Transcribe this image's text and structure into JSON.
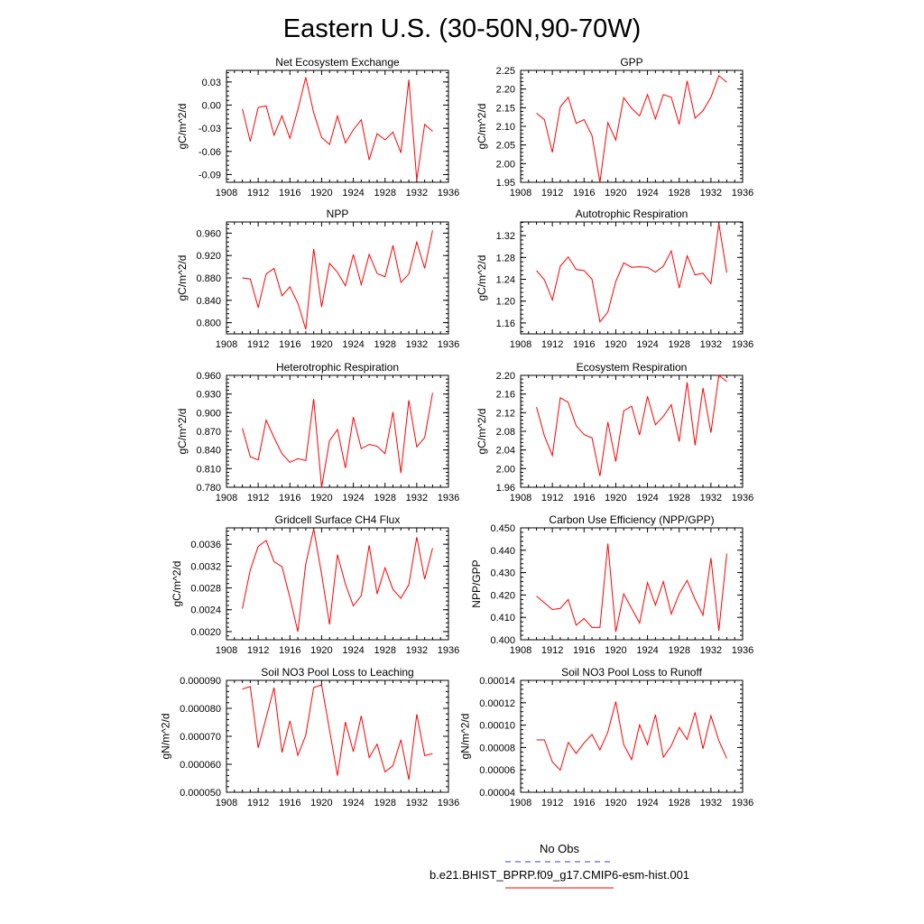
{
  "figure": {
    "title": "Eastern U.S. (30-50N,90-70W)"
  },
  "legend": {
    "entries": [
      {
        "label": "No Obs",
        "color": "#3a3ae0",
        "dashed": true
      },
      {
        "label": "b.e21.BHIST_BPRP.f09_g17.CMIP6-esm-hist.001",
        "color": "#ff0000",
        "dashed": false
      }
    ]
  },
  "chart_data": [
    {
      "type": "line",
      "title": "Net Ecosystem Exchange",
      "xlabel": "",
      "ylabel": "gC/m^2/d",
      "xlim": [
        1908,
        1936
      ],
      "ylim": [
        -0.1,
        0.045
      ],
      "xticks": [
        1908,
        1912,
        1916,
        1920,
        1924,
        1928,
        1932,
        1936
      ],
      "yticks": [
        -0.09,
        -0.06,
        -0.03,
        0.0,
        0.03
      ],
      "ytick_labels": [
        "-0.09",
        "-0.06",
        "-0.03",
        "0.00",
        "0.03"
      ],
      "x": [
        1910,
        1911,
        1912,
        1913,
        1914,
        1915,
        1916,
        1917,
        1918,
        1919,
        1920,
        1921,
        1922,
        1923,
        1924,
        1925,
        1926,
        1927,
        1928,
        1929,
        1930,
        1931,
        1932,
        1933,
        1934
      ],
      "series": [
        {
          "color": "#ff0000",
          "values": [
            -0.005,
            -0.047,
            -0.003,
            -0.001,
            -0.039,
            -0.014,
            -0.043,
            -0.006,
            0.036,
            -0.01,
            -0.042,
            -0.051,
            -0.014,
            -0.049,
            -0.032,
            -0.019,
            -0.071,
            -0.037,
            -0.045,
            -0.035,
            -0.062,
            0.033,
            -0.097,
            -0.025,
            -0.034
          ]
        }
      ]
    },
    {
      "type": "line",
      "title": "GPP",
      "xlabel": "",
      "ylabel": "gC/m^2/d",
      "xlim": [
        1908,
        1936
      ],
      "ylim": [
        1.95,
        2.25
      ],
      "xticks": [
        1908,
        1912,
        1916,
        1920,
        1924,
        1928,
        1932,
        1936
      ],
      "yticks": [
        1.95,
        2.0,
        2.05,
        2.1,
        2.15,
        2.2,
        2.25
      ],
      "ytick_labels": [
        "1.95",
        "2.00",
        "2.05",
        "2.10",
        "2.15",
        "2.20",
        "2.25"
      ],
      "x": [
        1910,
        1911,
        1912,
        1913,
        1914,
        1915,
        1916,
        1917,
        1918,
        1919,
        1920,
        1921,
        1922,
        1923,
        1924,
        1925,
        1926,
        1927,
        1928,
        1929,
        1930,
        1931,
        1932,
        1933,
        1934
      ],
      "series": [
        {
          "color": "#ff0000",
          "values": [
            2.135,
            2.118,
            2.03,
            2.152,
            2.178,
            2.108,
            2.118,
            2.075,
            1.95,
            2.11,
            2.063,
            2.177,
            2.148,
            2.128,
            2.185,
            2.12,
            2.185,
            2.178,
            2.105,
            2.222,
            2.122,
            2.142,
            2.178,
            2.236,
            2.218
          ]
        }
      ]
    },
    {
      "type": "line",
      "title": "NPP",
      "xlabel": "",
      "ylabel": "gC/m^2/d",
      "xlim": [
        1908,
        1936
      ],
      "ylim": [
        0.78,
        0.98
      ],
      "xticks": [
        1908,
        1912,
        1916,
        1920,
        1924,
        1928,
        1932,
        1936
      ],
      "yticks": [
        0.8,
        0.84,
        0.88,
        0.92,
        0.96
      ],
      "ytick_labels": [
        "0.800",
        "0.840",
        "0.880",
        "0.920",
        "0.960"
      ],
      "x": [
        1910,
        1911,
        1912,
        1913,
        1914,
        1915,
        1916,
        1917,
        1918,
        1919,
        1920,
        1921,
        1922,
        1923,
        1924,
        1925,
        1926,
        1927,
        1928,
        1929,
        1930,
        1931,
        1932,
        1933,
        1934
      ],
      "series": [
        {
          "color": "#ff0000",
          "values": [
            0.88,
            0.878,
            0.827,
            0.887,
            0.897,
            0.848,
            0.864,
            0.835,
            0.788,
            0.932,
            0.828,
            0.906,
            0.89,
            0.866,
            0.922,
            0.868,
            0.922,
            0.888,
            0.882,
            0.938,
            0.872,
            0.887,
            0.944,
            0.897,
            0.965
          ]
        }
      ]
    },
    {
      "type": "line",
      "title": "Autotrophic Respiration",
      "xlabel": "",
      "ylabel": "gC/m^2/d",
      "xlim": [
        1908,
        1936
      ],
      "ylim": [
        1.14,
        1.345
      ],
      "xticks": [
        1908,
        1912,
        1916,
        1920,
        1924,
        1928,
        1932,
        1936
      ],
      "yticks": [
        1.16,
        1.2,
        1.24,
        1.28,
        1.32
      ],
      "ytick_labels": [
        "1.16",
        "1.20",
        "1.24",
        "1.28",
        "1.32"
      ],
      "x": [
        1910,
        1911,
        1912,
        1913,
        1914,
        1915,
        1916,
        1917,
        1918,
        1919,
        1920,
        1921,
        1922,
        1923,
        1924,
        1925,
        1926,
        1927,
        1928,
        1929,
        1930,
        1931,
        1932,
        1933,
        1934
      ],
      "series": [
        {
          "color": "#ff0000",
          "values": [
            1.256,
            1.239,
            1.202,
            1.264,
            1.281,
            1.258,
            1.256,
            1.24,
            1.162,
            1.18,
            1.236,
            1.27,
            1.262,
            1.263,
            1.262,
            1.253,
            1.264,
            1.292,
            1.224,
            1.283,
            1.248,
            1.251,
            1.232,
            1.342,
            1.252
          ]
        }
      ]
    },
    {
      "type": "line",
      "title": "Heterotrophic Respiration",
      "xlabel": "",
      "ylabel": "gC/m^2/d",
      "xlim": [
        1908,
        1936
      ],
      "ylim": [
        0.78,
        0.96
      ],
      "xticks": [
        1908,
        1912,
        1916,
        1920,
        1924,
        1928,
        1932,
        1936
      ],
      "yticks": [
        0.78,
        0.81,
        0.84,
        0.87,
        0.9,
        0.93,
        0.96
      ],
      "ytick_labels": [
        "0.780",
        "0.810",
        "0.840",
        "0.870",
        "0.900",
        "0.930",
        "0.960"
      ],
      "x": [
        1910,
        1911,
        1912,
        1913,
        1914,
        1915,
        1916,
        1917,
        1918,
        1919,
        1920,
        1921,
        1922,
        1923,
        1924,
        1925,
        1926,
        1927,
        1928,
        1929,
        1930,
        1931,
        1932,
        1933,
        1934
      ],
      "series": [
        {
          "color": "#ff0000",
          "values": [
            0.875,
            0.829,
            0.824,
            0.888,
            0.86,
            0.834,
            0.82,
            0.826,
            0.823,
            0.922,
            0.78,
            0.855,
            0.873,
            0.811,
            0.893,
            0.842,
            0.849,
            0.846,
            0.834,
            0.901,
            0.803,
            0.92,
            0.845,
            0.86,
            0.932
          ]
        }
      ]
    },
    {
      "type": "line",
      "title": "Ecosystem Respiration",
      "xlabel": "",
      "ylabel": "gC/m^2/d",
      "xlim": [
        1908,
        1936
      ],
      "ylim": [
        1.96,
        2.2
      ],
      "xticks": [
        1908,
        1912,
        1916,
        1920,
        1924,
        1928,
        1932,
        1936
      ],
      "yticks": [
        1.96,
        2.0,
        2.04,
        2.08,
        2.12,
        2.16,
        2.2
      ],
      "ytick_labels": [
        "1.96",
        "2.00",
        "2.04",
        "2.08",
        "2.12",
        "2.16",
        "2.20"
      ],
      "x": [
        1910,
        1911,
        1912,
        1913,
        1914,
        1915,
        1916,
        1917,
        1918,
        1919,
        1920,
        1921,
        1922,
        1923,
        1924,
        1925,
        1926,
        1927,
        1928,
        1929,
        1930,
        1931,
        1932,
        1933,
        1934
      ],
      "series": [
        {
          "color": "#ff0000",
          "values": [
            2.132,
            2.07,
            2.028,
            2.152,
            2.142,
            2.092,
            2.073,
            2.066,
            1.984,
            2.1,
            2.015,
            2.124,
            2.134,
            2.072,
            2.155,
            2.094,
            2.112,
            2.137,
            2.058,
            2.185,
            2.05,
            2.173,
            2.077,
            2.2,
            2.187
          ]
        }
      ]
    },
    {
      "type": "line",
      "title": "Gridcell Surface CH4 Flux",
      "xlabel": "",
      "ylabel": "gC/m^2/d",
      "xlim": [
        1908,
        1936
      ],
      "ylim": [
        0.00185,
        0.0039
      ],
      "xticks": [
        1908,
        1912,
        1916,
        1920,
        1924,
        1928,
        1932,
        1936
      ],
      "yticks": [
        0.002,
        0.0024,
        0.0028,
        0.0032,
        0.0036
      ],
      "ytick_labels": [
        "0.0020",
        "0.0024",
        "0.0028",
        "0.0032",
        "0.0036"
      ],
      "x": [
        1910,
        1911,
        1912,
        1913,
        1914,
        1915,
        1916,
        1917,
        1918,
        1919,
        1920,
        1921,
        1922,
        1923,
        1924,
        1925,
        1926,
        1927,
        1928,
        1929,
        1930,
        1931,
        1932,
        1933,
        1934
      ],
      "series": [
        {
          "color": "#ff0000",
          "values": [
            0.00242,
            0.00313,
            0.00356,
            0.00367,
            0.00328,
            0.00319,
            0.00262,
            0.002,
            0.00324,
            0.00388,
            0.00305,
            0.00213,
            0.00341,
            0.00287,
            0.00247,
            0.00266,
            0.00358,
            0.00269,
            0.00317,
            0.00277,
            0.00261,
            0.00286,
            0.00373,
            0.00296,
            0.00353
          ]
        }
      ]
    },
    {
      "type": "line",
      "title": "Carbon Use Efficiency (NPP/GPP)",
      "xlabel": "",
      "ylabel": "NPP/GPP",
      "xlim": [
        1908,
        1936
      ],
      "ylim": [
        0.4,
        0.45
      ],
      "xticks": [
        1908,
        1912,
        1916,
        1920,
        1924,
        1928,
        1932,
        1936
      ],
      "yticks": [
        0.4,
        0.41,
        0.42,
        0.43,
        0.44,
        0.45
      ],
      "ytick_labels": [
        "0.400",
        "0.410",
        "0.420",
        "0.430",
        "0.440",
        "0.450"
      ],
      "x": [
        1910,
        1911,
        1912,
        1913,
        1914,
        1915,
        1916,
        1917,
        1918,
        1919,
        1920,
        1921,
        1922,
        1923,
        1924,
        1925,
        1926,
        1927,
        1928,
        1929,
        1930,
        1931,
        1932,
        1933,
        1934
      ],
      "series": [
        {
          "color": "#ff0000",
          "values": [
            0.4195,
            0.4165,
            0.4135,
            0.414,
            0.418,
            0.4065,
            0.4095,
            0.4055,
            0.4055,
            0.443,
            0.4035,
            0.4205,
            0.414,
            0.4075,
            0.4255,
            0.4155,
            0.426,
            0.4115,
            0.4205,
            0.4265,
            0.418,
            0.411,
            0.4365,
            0.404,
            0.4385
          ]
        }
      ]
    },
    {
      "type": "line",
      "title": "Soil NO3 Pool Loss to Leaching",
      "xlabel": "",
      "ylabel": "gN/m^2/d",
      "xlim": [
        1908,
        1936
      ],
      "ylim": [
        5e-05,
        9e-05
      ],
      "xticks": [
        1908,
        1912,
        1916,
        1920,
        1924,
        1928,
        1932,
        1936
      ],
      "yticks": [
        5e-05,
        6e-05,
        7e-05,
        8e-05,
        9e-05
      ],
      "ytick_labels": [
        "0.000050",
        "0.000060",
        "0.000070",
        "0.000080",
        "0.000090"
      ],
      "x": [
        1910,
        1911,
        1912,
        1913,
        1914,
        1915,
        1916,
        1917,
        1918,
        1919,
        1920,
        1921,
        1922,
        1923,
        1924,
        1925,
        1926,
        1927,
        1928,
        1929,
        1930,
        1931,
        1932,
        1933,
        1934
      ],
      "series": [
        {
          "color": "#ff0000",
          "values": [
            8.69e-05,
            8.78e-05,
            6.59e-05,
            7.66e-05,
            8.74e-05,
            6.42e-05,
            7.55e-05,
            6.32e-05,
            7.04e-05,
            8.74e-05,
            8.84e-05,
            7.22e-05,
            5.59e-05,
            7.51e-05,
            6.45e-05,
            7.73e-05,
            6.24e-05,
            6.72e-05,
            5.73e-05,
            5.95e-05,
            6.88e-05,
            5.45e-05,
            7.79e-05,
            6.31e-05,
            6.38e-05
          ]
        }
      ]
    },
    {
      "type": "line",
      "title": "Soil NO3 Pool Loss to Runoff",
      "xlabel": "",
      "ylabel": "gN/m^2/d",
      "xlim": [
        1908,
        1936
      ],
      "ylim": [
        4e-05,
        0.00014
      ],
      "xticks": [
        1908,
        1912,
        1916,
        1920,
        1924,
        1928,
        1932,
        1936
      ],
      "yticks": [
        4e-05,
        6e-05,
        8e-05,
        0.0001,
        0.00012,
        0.00014
      ],
      "ytick_labels": [
        "0.00004",
        "0.00006",
        "0.00008",
        "0.00010",
        "0.00012",
        "0.00014"
      ],
      "x": [
        1910,
        1911,
        1912,
        1913,
        1914,
        1915,
        1916,
        1917,
        1918,
        1919,
        1920,
        1921,
        1922,
        1923,
        1924,
        1925,
        1926,
        1927,
        1928,
        1929,
        1930,
        1931,
        1932,
        1933,
        1934
      ],
      "series": [
        {
          "color": "#ff0000",
          "values": [
            8.68e-05,
            8.68e-05,
            6.71e-05,
            5.98e-05,
            8.46e-05,
            7.47e-05,
            8.42e-05,
            9.16e-05,
            7.78e-05,
            9.39e-05,
            0.000121,
            8.27e-05,
            6.92e-05,
            0.0001002,
            8.26e-05,
            0.0001093,
            7.14e-05,
            8.15e-05,
            9.79e-05,
            8.72e-05,
            0.0001114,
            7.89e-05,
            0.0001084,
            8.62e-05,
            7.02e-05
          ]
        }
      ]
    }
  ]
}
